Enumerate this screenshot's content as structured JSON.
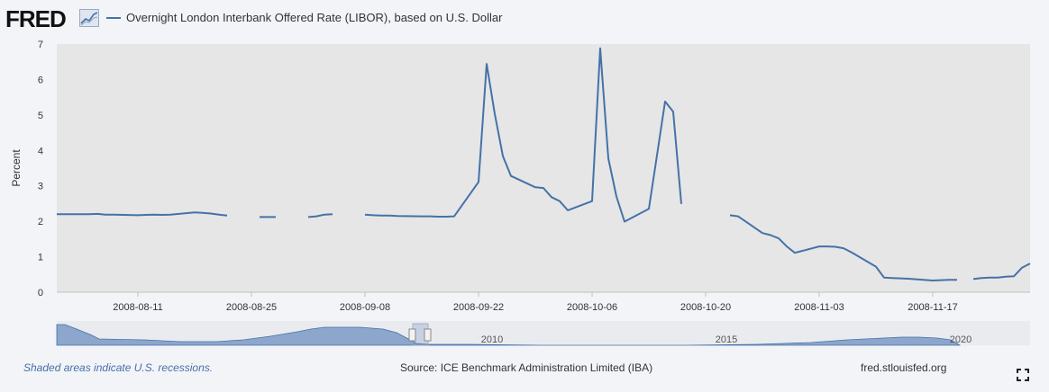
{
  "brand": {
    "logo_text": "FRED"
  },
  "footer": {
    "recession_note": "Shaded areas indicate U.S. recessions.",
    "source": "Source: ICE Benchmark Administration Limited (IBA)",
    "url": "fred.stlouisfed.org"
  },
  "icons": {
    "logo_graph": "chart-line-icon",
    "fullscreen": "fullscreen-icon"
  },
  "colors": {
    "series": "#4572a7",
    "plot_bg": "#e6e6e6",
    "page_bg": "#f2f4f8",
    "navigator_fill": "#8da6cc"
  },
  "navigator": {
    "tick_labels": [
      "2010",
      "2015",
      "2020"
    ]
  },
  "chart_data": {
    "type": "line",
    "title": "",
    "xlabel": "",
    "ylabel": "Percent",
    "ylim": [
      0,
      7
    ],
    "yticks": [
      "0",
      "1",
      "2",
      "3",
      "4",
      "5",
      "6",
      "7"
    ],
    "xticks": [
      "2008-08-11",
      "2008-08-25",
      "2008-09-08",
      "2008-09-22",
      "2008-10-06",
      "2008-10-20",
      "2008-11-03",
      "2008-11-17"
    ],
    "xrange": [
      "2008-08-01",
      "2008-11-29"
    ],
    "grid": false,
    "legend_position": "top-left",
    "series": [
      {
        "name": "Overnight London Interbank Offered Rate (LIBOR), based on U.S. Dollar",
        "points": [
          [
            "2008-08-01",
            2.2
          ],
          [
            "2008-08-04",
            2.2
          ],
          [
            "2008-08-05",
            2.2
          ],
          [
            "2008-08-06",
            2.21
          ],
          [
            "2008-08-07",
            2.19
          ],
          [
            "2008-08-08",
            2.19
          ],
          [
            "2008-08-11",
            2.17
          ],
          [
            "2008-08-12",
            2.18
          ],
          [
            "2008-08-13",
            2.19
          ],
          [
            "2008-08-14",
            2.18
          ],
          [
            "2008-08-15",
            2.19
          ],
          [
            "2008-08-18",
            2.25
          ],
          [
            "2008-08-19",
            2.24
          ],
          [
            "2008-08-20",
            2.22
          ],
          [
            "2008-08-21",
            2.19
          ],
          [
            "2008-08-22",
            2.16
          ],
          [
            "2008-08-25",
            null
          ],
          [
            "2008-08-26",
            2.12
          ],
          [
            "2008-08-27",
            2.12
          ],
          [
            "2008-08-28",
            2.12
          ],
          [
            "2008-08-29",
            null
          ],
          [
            "2008-09-01",
            2.12
          ],
          [
            "2008-09-02",
            2.14
          ],
          [
            "2008-09-03",
            2.19
          ],
          [
            "2008-09-04",
            2.2
          ],
          [
            "2008-09-05",
            null
          ],
          [
            "2008-09-08",
            2.19
          ],
          [
            "2008-09-09",
            2.17
          ],
          [
            "2008-09-10",
            2.16
          ],
          [
            "2008-09-11",
            2.16
          ],
          [
            "2008-09-12",
            2.15
          ],
          [
            "2008-09-15",
            2.14
          ],
          [
            "2008-09-16",
            2.14
          ],
          [
            "2008-09-17",
            2.13
          ],
          [
            "2008-09-18",
            2.13
          ],
          [
            "2008-09-19",
            2.14
          ],
          [
            "2008-09-22",
            3.11
          ],
          [
            "2008-09-23",
            6.44
          ],
          [
            "2008-09-24",
            5.03
          ],
          [
            "2008-09-25",
            3.84
          ],
          [
            "2008-09-26",
            3.28
          ],
          [
            "2008-09-29",
            2.96
          ],
          [
            "2008-09-30",
            2.94
          ],
          [
            "2008-10-01",
            2.68
          ],
          [
            "2008-10-02",
            2.57
          ],
          [
            "2008-10-03",
            2.31
          ],
          [
            "2008-10-06",
            2.57
          ],
          [
            "2008-10-07",
            6.88
          ],
          [
            "2008-10-08",
            3.78
          ],
          [
            "2008-10-09",
            2.7
          ],
          [
            "2008-10-10",
            1.99
          ],
          [
            "2008-10-13",
            2.35
          ],
          [
            "2008-10-14",
            3.86
          ],
          [
            "2008-10-15",
            5.38
          ],
          [
            "2008-10-16",
            5.09
          ],
          [
            "2008-10-17",
            2.49
          ],
          [
            "2008-10-20",
            null
          ],
          [
            "2008-10-23",
            2.17
          ],
          [
            "2008-10-24",
            2.14
          ],
          [
            "2008-10-27",
            1.67
          ],
          [
            "2008-10-28",
            1.61
          ],
          [
            "2008-10-29",
            1.52
          ],
          [
            "2008-10-30",
            1.29
          ],
          [
            "2008-10-31",
            1.11
          ],
          [
            "2008-11-03",
            1.29
          ],
          [
            "2008-11-04",
            1.29
          ],
          [
            "2008-11-05",
            1.28
          ],
          [
            "2008-11-06",
            1.24
          ],
          [
            "2008-11-07",
            1.12
          ],
          [
            "2008-11-10",
            0.72
          ],
          [
            "2008-11-11",
            0.41
          ],
          [
            "2008-11-12",
            0.4
          ],
          [
            "2008-11-13",
            0.39
          ],
          [
            "2008-11-14",
            0.38
          ],
          [
            "2008-11-17",
            0.33
          ],
          [
            "2008-11-18",
            0.34
          ],
          [
            "2008-11-19",
            0.35
          ],
          [
            "2008-11-20",
            0.35
          ],
          [
            "2008-11-21",
            null
          ],
          [
            "2008-11-22",
            0.37
          ],
          [
            "2008-11-23",
            0.4
          ],
          [
            "2008-11-24",
            0.41
          ],
          [
            "2008-11-25",
            0.41
          ],
          [
            "2008-11-26",
            0.44
          ],
          [
            "2008-11-27",
            0.45
          ],
          [
            "2008-11-28",
            0.69
          ],
          [
            "2008-11-29",
            0.81
          ]
        ]
      }
    ]
  }
}
